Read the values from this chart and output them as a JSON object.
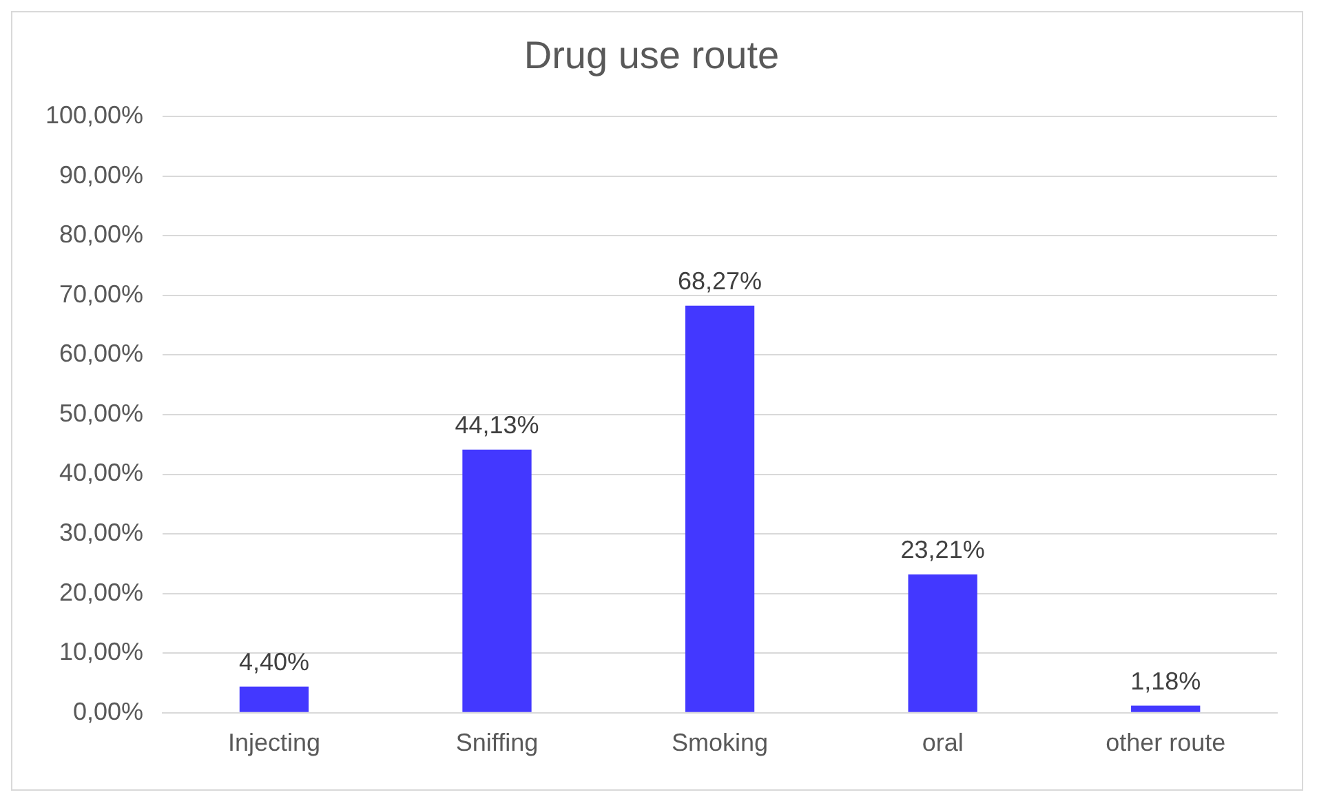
{
  "chart_data": {
    "type": "bar",
    "title": "Drug use route",
    "categories": [
      "Injecting",
      "Sniffing",
      "Smoking",
      "oral",
      "other route"
    ],
    "values": [
      4.4,
      44.13,
      68.27,
      23.21,
      1.18
    ],
    "value_labels": [
      "4,40%",
      "44,13%",
      "68,27%",
      "23,21%",
      "1,18%"
    ],
    "color": "#4338ff",
    "ylim": [
      0,
      100
    ],
    "yticks": [
      {
        "value": 0,
        "label": "0,00%"
      },
      {
        "value": 10,
        "label": "10,00%"
      },
      {
        "value": 20,
        "label": "20,00%"
      },
      {
        "value": 30,
        "label": "30,00%"
      },
      {
        "value": 40,
        "label": "40,00%"
      },
      {
        "value": 50,
        "label": "50,00%"
      },
      {
        "value": 60,
        "label": "60,00%"
      },
      {
        "value": 70,
        "label": "70,00%"
      },
      {
        "value": 80,
        "label": "80,00%"
      },
      {
        "value": 90,
        "label": "90,00%"
      },
      {
        "value": 100,
        "label": "100,00%"
      }
    ],
    "grid": "y",
    "legend": false
  }
}
